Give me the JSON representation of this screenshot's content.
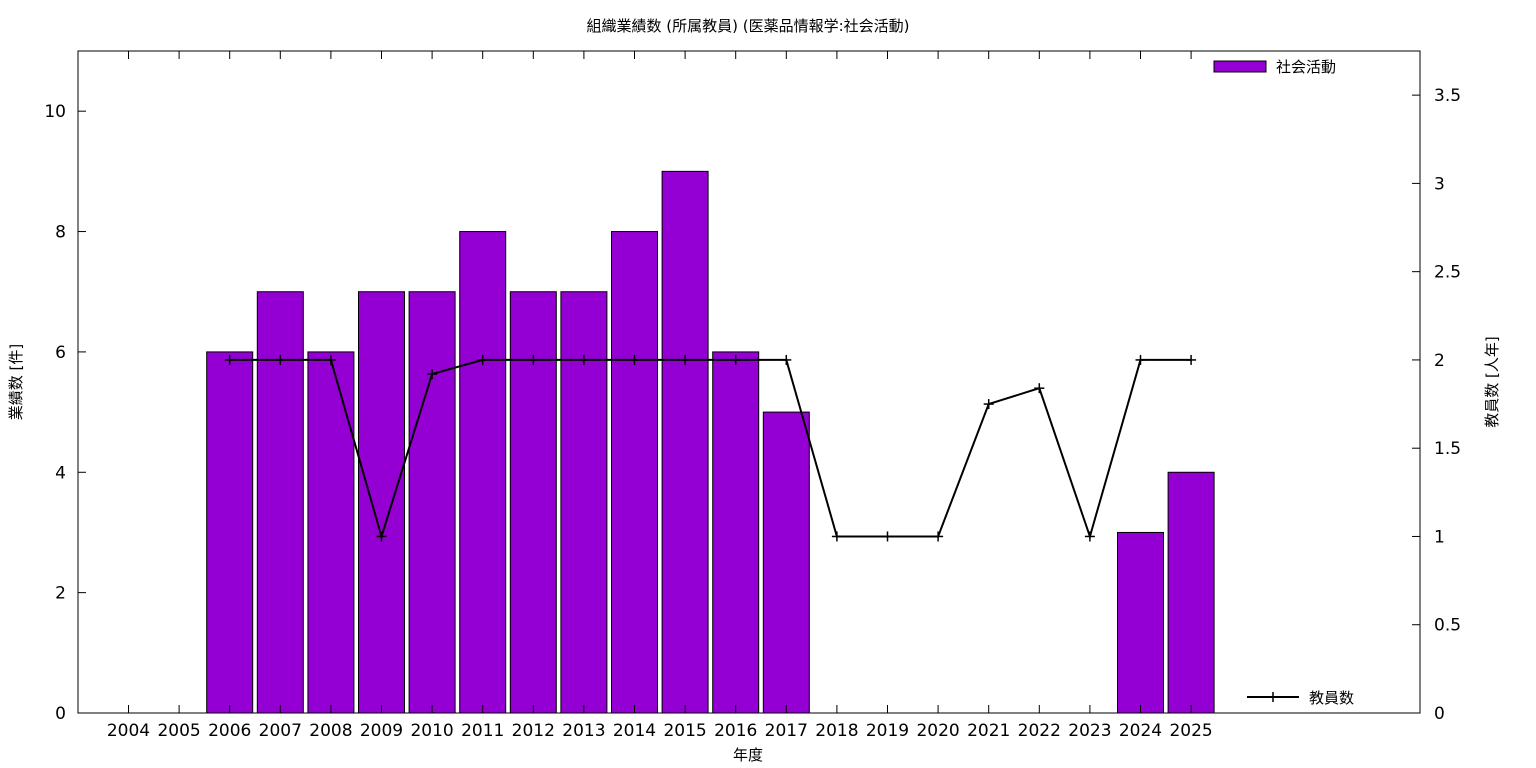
{
  "chart_data": {
    "type": "bar",
    "title": "組織業績数 (所属教員) (医薬品情報学:社会活動)",
    "xlabel": "年度",
    "ylabel": "業績数 [件]",
    "y2label": "教員数 [人年]",
    "categories": [
      "2004",
      "2005",
      "2006",
      "2007",
      "2008",
      "2009",
      "2010",
      "2011",
      "2012",
      "2013",
      "2014",
      "2015",
      "2016",
      "2017",
      "2018",
      "2019",
      "2020",
      "2021",
      "2022",
      "2023",
      "2024",
      "2025"
    ],
    "series": [
      {
        "name": "社会活動",
        "type": "bar",
        "axis": "left",
        "color": "#9400d3",
        "values": [
          null,
          null,
          6,
          7,
          6,
          7,
          7,
          8,
          7,
          7,
          8,
          9,
          6,
          5,
          null,
          null,
          null,
          null,
          null,
          null,
          3,
          4
        ]
      },
      {
        "name": "教員数",
        "type": "line",
        "axis": "right",
        "color": "#000000",
        "values": [
          null,
          null,
          2,
          2,
          2,
          1,
          1.92,
          2,
          2,
          2,
          2,
          2,
          2,
          2,
          1,
          1,
          1,
          1.75,
          1.84,
          1,
          2,
          2
        ]
      }
    ],
    "ylim": [
      0,
      11
    ],
    "y2lim": [
      0,
      3.75
    ],
    "yticks": [
      "0",
      "2",
      "4",
      "6",
      "8",
      "10"
    ],
    "y2ticks": [
      "0",
      "0.5",
      "1",
      "1.5",
      "2",
      "2.5",
      "3",
      "3.5"
    ],
    "legend_placement": "top-right and bottom-right",
    "grid": false
  }
}
